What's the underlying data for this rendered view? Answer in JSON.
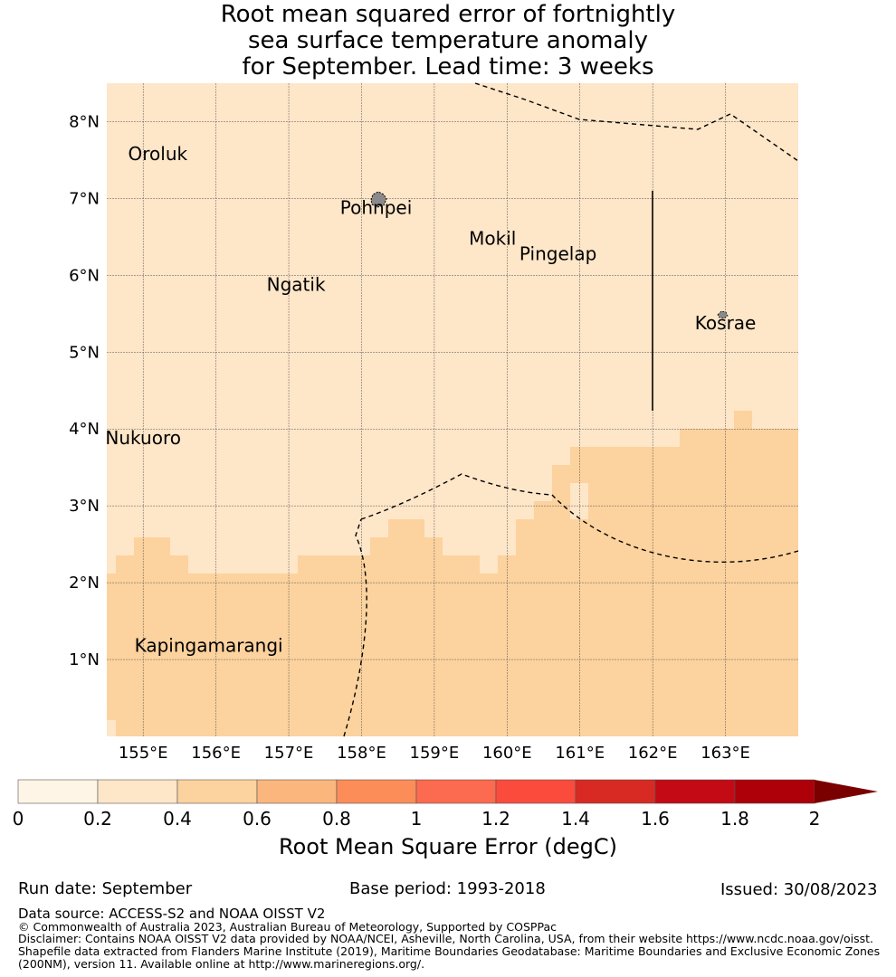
{
  "title": "Root mean squared error of fortnightly\nsea surface temperature anomaly\nfor September. Lead time: 3 weeks",
  "map": {
    "lon_range": [
      154.5,
      164.0
    ],
    "lat_range": [
      0,
      8.5
    ],
    "lon_ticks": [
      "155°E",
      "156°E",
      "157°E",
      "158°E",
      "159°E",
      "160°E",
      "161°E",
      "162°E",
      "163°E"
    ],
    "lat_ticks": [
      "1°N",
      "2°N",
      "3°N",
      "4°N",
      "5°N",
      "6°N",
      "7°N",
      "8°N"
    ],
    "places": [
      {
        "name": "Oroluk",
        "lon": 155.2,
        "lat": 7.5
      },
      {
        "name": "Pohnpei",
        "lon": 158.2,
        "lat": 6.8
      },
      {
        "name": "Mokil",
        "lon": 159.8,
        "lat": 6.4
      },
      {
        "name": "Pingelap",
        "lon": 160.7,
        "lat": 6.2
      },
      {
        "name": "Ngatik",
        "lon": 157.1,
        "lat": 5.8
      },
      {
        "name": "Kosrae",
        "lon": 163.0,
        "lat": 5.3
      },
      {
        "name": "Nukuoro",
        "lon": 155.0,
        "lat": 3.8
      },
      {
        "name": "Kapingamarangi",
        "lon": 155.9,
        "lat": 1.1
      }
    ],
    "field_colors": {
      "band_02_04": "#fee6c8",
      "band_04_06": "#fcd29e"
    }
  },
  "colorbar": {
    "labels": [
      "0",
      "0.2",
      "0.4",
      "0.6",
      "0.8",
      "1",
      "1.2",
      "1.4",
      "1.6",
      "1.8",
      "2"
    ],
    "colors": [
      "#fff5e6",
      "#fee6c8",
      "#fcd29e",
      "#fbb67e",
      "#fc8d59",
      "#fc6a4f",
      "#fb4b3c",
      "#d82a22",
      "#c40a14",
      "#ad0009"
    ],
    "extend_color": "#7a0000",
    "title": "Root Mean Square Error (degC)"
  },
  "footer": {
    "run_date": "Run date: September",
    "base_period": "Base period: 1993-2018",
    "issued": "Issued: 30/08/2023",
    "data_source": "Data source: ACCESS-S2 and NOAA OISST V2",
    "copyright": "© Commonwealth of Australia 2023, Australian Bureau of Meteorology, Supported by COSPPac",
    "disclaimer": "Disclaimer: Contains NOAA OISST V2 data provided by NOAA/NCEI, Asheville, North Carolina, USA, from their website https://www.ncdc.noaa.gov/oisst.\nShapefile data extracted from Flanders Marine Institute (2019), Maritime Boundaries Geodatabase: Maritime Boundaries and Exclusive Economic Zones\n(200NM), version 11. Available online at http://www.marineregions.org/."
  }
}
